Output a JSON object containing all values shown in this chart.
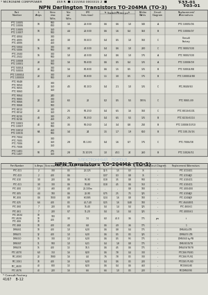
{
  "title1": "NPN Darlington Transistors TO-204MA (TO-3)",
  "title2": "NPN Transistors TO-204MA (TO-3)",
  "header_line": "* MICROSEMI CORP/POWER        459 R  ■ 1115950 0003315 2  ■",
  "ref1": "T-33-01",
  "ref2": "T-03-01",
  "table1_headers_top": [
    "Part",
    "Ic",
    "Vceo",
    "Vce",
    "hFE",
    "Switch Time μs",
    "",
    "",
    "BVcbo",
    "Circuit",
    "Replacement/"
  ],
  "table1_headers_bot": [
    "Number",
    "Amps",
    "max\nVolts",
    "sat\nVolts",
    "(min-max)",
    "ts",
    "tb",
    "tr",
    "Watts",
    "Diagram",
    "Alternatives"
  ],
  "table1_rows": [
    [
      "PTC 10005\nPTC 10006",
      "10",
      "500\n600",
      "1.6",
      "20-500",
      "0.6",
      "0.6",
      "1.0",
      "140",
      "A",
      "PTC 10005/06"
    ],
    [
      "PTC 13005\nPTC 13007",
      "10",
      "350\n500",
      "4.4",
      "20-500",
      "0.6",
      "1.6",
      "0.4",
      "150",
      "B",
      "PTC 10006/07"
    ],
    [
      "PTC 4004\nPTC 4005\nPTC 4006",
      "10",
      "300\n450\n450",
      "3.0",
      "10-500",
      "0.4",
      "0.5",
      "1.0",
      "160",
      "C",
      "Consult\nFactory"
    ],
    [
      "PTC 5004\nPTC 5006",
      "15",
      "300\n500",
      "3.0",
      "40-500",
      "0.4",
      "0.6",
      "1.0",
      "200",
      "C",
      "PTC 9000/500"
    ],
    [
      "PTC 2500\nPTC 2502",
      "16",
      "300\n500",
      "1.0",
      "40-500",
      "0.4",
      "0.6",
      "1.0",
      "175",
      "A",
      "PTC 9000/500"
    ],
    [
      "PTC 10008\nPTC 10001",
      "20",
      "350\n500",
      "1.6",
      "50-600",
      "0.6",
      "0.5",
      "0.4",
      "125",
      "A",
      "PTC 10008/09"
    ],
    [
      "PTC 50004\nPTC 50006",
      "20",
      "300\n500",
      "1.6",
      "60-800",
      "0.6",
      "1.5",
      "0.5",
      "125",
      "B",
      "PTC 50004/88"
    ],
    [
      "PTC 100004\nPTC 100008",
      "20",
      "300\n500",
      "2.4",
      "60-800",
      "1.1",
      "3.0",
      "0.5",
      "175",
      "B",
      "PTC 100004/88"
    ],
    [
      "PTC 9048\nPTC 9050\nPTC 9055\nPTC 9060",
      "20",
      "300\n350\n350",
      "4.5",
      "60-100",
      "0.4",
      "2.1",
      "1.0",
      "125",
      "C",
      "PTC-9048/63"
    ],
    [
      "PTC 9064\nPTC 9065\nPTC 9066\nPTC 9068",
      "20",
      "240\n300\n350\n500",
      "6.5",
      "20",
      "0.2",
      "0.5",
      "5.5",
      "105%",
      "C",
      "PTC 9065-89"
    ],
    [
      "PTC 8013\nPTC 8014",
      "20",
      "300\n350",
      "2.5",
      "50-250",
      "0.4",
      "6.5",
      "1.6",
      "160",
      "C",
      "PTC 8013/6201"
    ],
    [
      "PTC 8215\nPTC 8216",
      "40",
      "300\n450",
      "2.5",
      "50-250",
      "0.4",
      "6.5",
      "5.5",
      "125",
      "B",
      "PTC 8215/6214"
    ],
    [
      "PTC 10001\nPTC 10007",
      "40",
      "350\n500",
      "3.5",
      "50-060",
      "1.4",
      "3.4",
      "0.8",
      "210",
      "B",
      "PTC 10008/10/10"
    ],
    [
      "PTC 10012\nPTC 10015",
      "6A",
      "450\n500",
      "3.4",
      "24",
      "1.5",
      "1.7",
      "1.9",
      "650",
      "B",
      "PTC 100-15/16"
    ],
    [
      "PTC 7004\nPTC 7005\nPTC 7006\nPTC 7008",
      "20",
      "300\n350\n350",
      "2.8",
      "60-1.80",
      "0.4",
      "1.6",
      "0.7",
      "175",
      "C",
      "PTC 7006/08"
    ],
    [
      "PTC 1401\nPTC 1407",
      "50",
      "275\n350",
      "2.8",
      "70-100/5",
      "1.0",
      "4.51",
      "24",
      "260",
      "B",
      "PTC 10026/51"
    ]
  ],
  "table2_rows": [
    [
      "PTC 411",
      "2",
      "300",
      "0.5",
      "20-125",
      "12.5",
      "1.5",
      "0.3",
      "75",
      "--",
      "PTC 411/411"
    ],
    [
      "PTC 413",
      "2",
      "400",
      "0.6",
      "--",
      "0.37",
      "0.3",
      "0.8",
      "75",
      "--",
      "PTC 415/AJ3"
    ],
    [
      "PTC 410",
      "3.0",
      "200",
      "0.6",
      "50-90",
      "0.18",
      "3.5",
      "0.8",
      "500",
      "--",
      "PTC 410/411"
    ],
    [
      "PTC 411",
      "3.0",
      "300",
      "0.6",
      "50-80",
      "0.18",
      "4.5",
      "0.6",
      "150",
      "--",
      "PTC 410/411"
    ],
    [
      "PTC 400",
      "1.0",
      "430",
      "4.0",
      "20-100m",
      "--",
      "--",
      "0.8",
      "100",
      "--",
      "PTC 400/400"
    ],
    [
      "PTC 405",
      "4.4",
      "100",
      "0.6",
      "20-90",
      "0.75",
      "2.5",
      "7.5",
      "125",
      "--",
      "PTC 410/AJ3"
    ],
    [
      "PTC-406",
      "0.6",
      "1000",
      "0.8",
      "6/1085",
      "0.24",
      "1.6",
      "0.8",
      "100",
      "--",
      "PTC 424/AJ9"
    ],
    [
      "PTC 425",
      "6.6",
      "400",
      "0.5",
      "40-7-40",
      "0.25",
      "1.6",
      "0.48",
      "100",
      "--",
      "PTC 464/4831"
    ],
    [
      "PTC 460",
      "7",
      "200",
      "0.5",
      "16-40",
      "0.4",
      "1.4",
      "0.4",
      "125",
      "--",
      "PTC 460/61"
    ],
    [
      "PTC 461",
      "7",
      "200",
      "0.7",
      "11-20",
      "0.4",
      "1.4",
      "0.4",
      "125",
      "--",
      "PTC 4000/61"
    ],
    [
      "PTC 4634\nPTC 4636\nPTC 466",
      "10\n10\n70",
      "100\n400",
      "3.0",
      "7-4",
      "6.0",
      "40.0",
      "3.6",
      "175",
      "yes",
      "t"
    ],
    [
      "PTC 468",
      "10",
      "400",
      "4.0",
      "6-8",
      "0.6",
      "4.9",
      "3.6",
      "175",
      "--",
      "1"
    ],
    [
      "DM6461",
      "10",
      "400",
      "1.0",
      "6-20",
      "0.6",
      "0.8",
      "0.4",
      "175",
      "--",
      "DM6461/LTB"
    ],
    [
      "DM6475",
      "12",
      "400",
      "1.0",
      "6-20",
      "0.6",
      "0.5",
      "0.5",
      "125",
      "--",
      "DM6475 LTB"
    ],
    [
      "DM6310",
      "16",
      "300",
      "1.0",
      "6-20",
      "0.6",
      "0.5",
      "5/5",
      "175",
      "--",
      "DM6560 by PB"
    ],
    [
      "DM6367",
      "11",
      "500",
      "1.0",
      "6-21",
      "0.4",
      "1.8",
      "0.8",
      "175",
      "--",
      "DM6367/4/78"
    ],
    [
      "DM6478",
      "15",
      "400",
      "1.5",
      "10-5",
      "0.6",
      "4.5",
      "0.6",
      "175",
      "--",
      "DM6478/78/78"
    ],
    [
      "PTC 4070",
      "6.0",
      "350",
      "1.6",
      "8-20",
      "0.6",
      "7.8",
      "0.4",
      "300",
      "--",
      "PTC266 PU/81"
    ],
    [
      "PTC-4060",
      "20",
      "1080",
      "1.6",
      "4-4",
      "7.6",
      "7.8",
      "0.5",
      "300",
      "--",
      "PTC266 PL/81"
    ],
    [
      "PTC-1061",
      "70",
      "400",
      "1.6",
      "6-20",
      "0.4",
      "0.6",
      "0.5",
      "200",
      "--",
      "PTC065 PL/80"
    ],
    [
      "PTC_4600",
      "40",
      "800",
      "1.5",
      "8-20",
      "0.6",
      "0.4",
      "0.6",
      "460",
      "--",
      "PTC0660/80"
    ],
    [
      "PTC 4676",
      "40",
      "200",
      "1.6",
      "6-6",
      "6.6",
      "1.0",
      "0.5",
      "200",
      "--",
      "PTC0M60/90"
    ]
  ],
  "footnote": "* Consult Factory",
  "page_info": "4167    B-12",
  "bg_color": "#deded6",
  "watermark_color": "#9ab8d0",
  "line_color": "#555555",
  "text_color": "#111111",
  "header_bg": "#d0d0c8",
  "row_even": "#e0e0d8",
  "row_odd": "#d4d4cc"
}
